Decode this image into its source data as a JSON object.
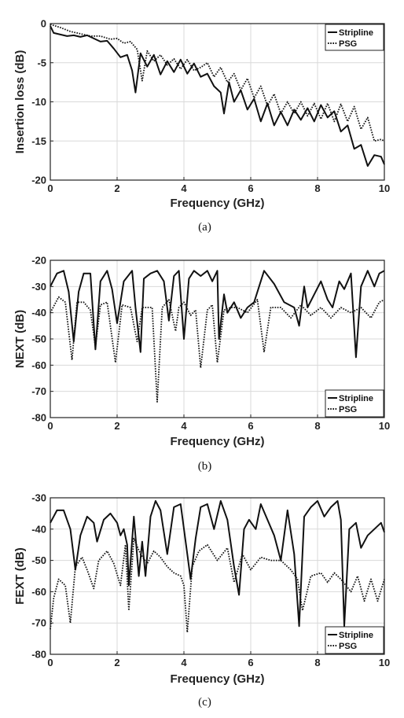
{
  "chart_data": [
    {
      "type": "line",
      "caption": "(a)",
      "xlabel": "Frequency (GHz)",
      "ylabel": "Insertion loss (dB)",
      "xlim": [
        0,
        10
      ],
      "ylim": [
        -20,
        0
      ],
      "xticks": [
        0,
        2,
        4,
        6,
        8,
        10
      ],
      "yticks": [
        0,
        -5,
        -10,
        -15,
        -20
      ],
      "grid": true,
      "legend_position": "top-right",
      "series": [
        {
          "name": "Stripline",
          "style": "solid",
          "x": [
            0,
            0.1,
            0.3,
            0.5,
            0.7,
            0.9,
            1.1,
            1.3,
            1.5,
            1.7,
            1.9,
            2.1,
            2.3,
            2.45,
            2.55,
            2.7,
            2.9,
            3.1,
            3.3,
            3.5,
            3.7,
            3.9,
            4.1,
            4.3,
            4.5,
            4.7,
            4.9,
            5.1,
            5.2,
            5.35,
            5.5,
            5.7,
            5.9,
            6.1,
            6.3,
            6.5,
            6.7,
            6.9,
            7.1,
            7.3,
            7.5,
            7.7,
            7.9,
            8.1,
            8.3,
            8.5,
            8.7,
            8.9,
            9.1,
            9.3,
            9.5,
            9.7,
            9.9,
            10
          ],
          "y": [
            -0.3,
            -1.2,
            -1.4,
            -1.6,
            -1.5,
            -1.7,
            -1.5,
            -1.9,
            -2.3,
            -2.2,
            -3.2,
            -4.3,
            -4.0,
            -6.0,
            -8.8,
            -3.8,
            -5.5,
            -4.0,
            -6.5,
            -4.8,
            -6.2,
            -4.6,
            -6.4,
            -5.1,
            -6.8,
            -6.4,
            -8.0,
            -8.8,
            -11.5,
            -7.5,
            -10.0,
            -8.5,
            -11.0,
            -9.6,
            -12.5,
            -10.2,
            -13.0,
            -11.3,
            -13.0,
            -11.0,
            -12.3,
            -10.8,
            -12.5,
            -10.4,
            -12.0,
            -11.2,
            -13.8,
            -13.0,
            -16.0,
            -15.5,
            -18.2,
            -16.8,
            -17.0,
            -18.0
          ]
        },
        {
          "name": "PSG",
          "style": "dotted",
          "x": [
            0,
            0.3,
            0.6,
            0.9,
            1.2,
            1.5,
            1.8,
            2.0,
            2.2,
            2.4,
            2.6,
            2.75,
            2.9,
            3.1,
            3.3,
            3.5,
            3.7,
            3.9,
            4.1,
            4.3,
            4.5,
            4.7,
            4.9,
            5.1,
            5.3,
            5.5,
            5.7,
            5.9,
            6.1,
            6.3,
            6.5,
            6.7,
            6.9,
            7.1,
            7.3,
            7.5,
            7.7,
            7.9,
            8.1,
            8.3,
            8.5,
            8.7,
            8.9,
            9.1,
            9.3,
            9.5,
            9.7,
            9.9,
            10
          ],
          "y": [
            -0.1,
            -0.5,
            -1.0,
            -1.3,
            -1.6,
            -1.6,
            -2.0,
            -1.9,
            -2.5,
            -2.3,
            -3.3,
            -7.3,
            -3.5,
            -4.8,
            -4.0,
            -5.3,
            -4.5,
            -5.8,
            -4.6,
            -6.0,
            -5.6,
            -5.0,
            -6.8,
            -5.6,
            -7.5,
            -6.4,
            -8.5,
            -7.0,
            -9.5,
            -8.0,
            -10.5,
            -9.0,
            -11.5,
            -10.0,
            -11.5,
            -10.0,
            -11.8,
            -10.2,
            -12.2,
            -10.2,
            -12.5,
            -10.3,
            -12.5,
            -10.6,
            -13.5,
            -12.0,
            -15.0,
            -14.8,
            -15.0
          ]
        }
      ]
    },
    {
      "type": "line",
      "caption": "(b)",
      "xlabel": "Frequency (GHz)",
      "ylabel": "NEXT (dB)",
      "xlim": [
        0,
        10
      ],
      "ylim": [
        -80,
        -20
      ],
      "xticks": [
        0,
        2,
        4,
        6,
        8,
        10
      ],
      "yticks": [
        -20,
        -30,
        -40,
        -50,
        -60,
        -70,
        -80
      ],
      "grid": true,
      "legend_position": "bottom-right",
      "series": [
        {
          "name": "Stripline",
          "style": "solid",
          "x": [
            0,
            0.2,
            0.4,
            0.55,
            0.7,
            0.85,
            1.0,
            1.2,
            1.35,
            1.5,
            1.7,
            1.85,
            2.0,
            2.2,
            2.45,
            2.55,
            2.7,
            2.8,
            3.0,
            3.2,
            3.4,
            3.55,
            3.7,
            3.85,
            4.0,
            4.15,
            4.3,
            4.5,
            4.7,
            4.85,
            5.0,
            5.05,
            5.2,
            5.3,
            5.5,
            5.7,
            5.9,
            6.1,
            6.4,
            6.7,
            7.0,
            7.3,
            7.45,
            7.6,
            7.7,
            7.9,
            8.1,
            8.3,
            8.45,
            8.65,
            8.8,
            9.0,
            9.15,
            9.3,
            9.5,
            9.7,
            9.85,
            10
          ],
          "y": [
            -30,
            -25,
            -24,
            -32,
            -51,
            -32,
            -25,
            -25,
            -54,
            -28,
            -24,
            -31,
            -44,
            -28,
            -24,
            -38,
            -55,
            -27,
            -25,
            -24,
            -28,
            -43,
            -26,
            -24,
            -50,
            -27,
            -24,
            -26,
            -24,
            -28,
            -24,
            -50,
            -33,
            -40,
            -36,
            -42,
            -38,
            -36,
            -24,
            -29,
            -36,
            -38,
            -45,
            -30,
            -38,
            -33,
            -28,
            -35,
            -38,
            -28,
            -31,
            -25,
            -57,
            -30,
            -24,
            -30,
            -25,
            -24
          ]
        },
        {
          "name": "PSG",
          "style": "dotted",
          "x": [
            0,
            0.25,
            0.45,
            0.65,
            0.8,
            1.0,
            1.2,
            1.35,
            1.5,
            1.7,
            1.95,
            2.15,
            2.4,
            2.6,
            2.75,
            2.9,
            3.05,
            3.2,
            3.35,
            3.55,
            3.75,
            3.85,
            4.0,
            4.2,
            4.35,
            4.5,
            4.7,
            4.85,
            5.0,
            5.2,
            5.4,
            5.6,
            5.9,
            6.2,
            6.4,
            6.6,
            6.9,
            7.2,
            7.5,
            7.8,
            8.1,
            8.4,
            8.7,
            9.0,
            9.3,
            9.6,
            9.85,
            10
          ],
          "y": [
            -40,
            -34,
            -36,
            -58,
            -36,
            -36,
            -39,
            -53,
            -37,
            -36,
            -59,
            -37,
            -38,
            -51,
            -38,
            -38,
            -38,
            -74,
            -38,
            -35,
            -47,
            -38,
            -36,
            -41,
            -39,
            -61,
            -39,
            -37,
            -59,
            -39,
            -38,
            -38,
            -40,
            -35,
            -55,
            -38,
            -38,
            -42,
            -37,
            -41,
            -38,
            -42,
            -38,
            -40,
            -38,
            -42,
            -36,
            -35
          ]
        }
      ]
    },
    {
      "type": "line",
      "caption": "(c)",
      "xlabel": "Frequency (GHz)",
      "ylabel": "FEXT (dB)",
      "xlim": [
        0,
        10
      ],
      "ylim": [
        -80,
        -30
      ],
      "xticks": [
        0,
        2,
        4,
        6,
        8,
        10
      ],
      "yticks": [
        -30,
        -40,
        -50,
        -60,
        -70,
        -80
      ],
      "grid": true,
      "legend_position": "bottom-right",
      "series": [
        {
          "name": "Stripline",
          "style": "solid",
          "x": [
            0,
            0.2,
            0.4,
            0.6,
            0.75,
            0.9,
            1.1,
            1.3,
            1.4,
            1.6,
            1.8,
            2.0,
            2.1,
            2.2,
            2.3,
            2.35,
            2.5,
            2.65,
            2.75,
            2.85,
            3.0,
            3.15,
            3.3,
            3.5,
            3.7,
            3.9,
            4.1,
            4.2,
            4.35,
            4.5,
            4.7,
            4.9,
            5.1,
            5.3,
            5.5,
            5.65,
            5.8,
            5.95,
            6.15,
            6.3,
            6.5,
            6.7,
            6.9,
            7.1,
            7.3,
            7.45,
            7.6,
            7.8,
            8.0,
            8.2,
            8.4,
            8.6,
            8.7,
            8.8,
            8.95,
            9.15,
            9.3,
            9.5,
            9.7,
            9.9,
            10
          ],
          "y": [
            -38,
            -34,
            -34,
            -40,
            -53,
            -42,
            -36,
            -38,
            -44,
            -37,
            -35,
            -38,
            -42,
            -40,
            -45,
            -58,
            -36,
            -55,
            -44,
            -55,
            -36,
            -31,
            -34,
            -48,
            -33,
            -32,
            -48,
            -56,
            -43,
            -33,
            -32,
            -40,
            -31,
            -37,
            -52,
            -61,
            -40,
            -37,
            -40,
            -32,
            -37,
            -42,
            -50,
            -34,
            -48,
            -71,
            -36,
            -33,
            -31,
            -36,
            -33,
            -31,
            -37,
            -71,
            -40,
            -38,
            -46,
            -42,
            -40,
            -38,
            -41
          ]
        },
        {
          "name": "PSG",
          "style": "dotted",
          "x": [
            0,
            0.1,
            0.25,
            0.45,
            0.6,
            0.75,
            0.95,
            1.1,
            1.3,
            1.45,
            1.7,
            1.9,
            2.1,
            2.25,
            2.35,
            2.5,
            2.7,
            2.9,
            3.1,
            3.3,
            3.5,
            3.7,
            3.9,
            4.0,
            4.1,
            4.25,
            4.45,
            4.7,
            5.0,
            5.3,
            5.5,
            5.75,
            6.0,
            6.3,
            6.6,
            6.9,
            7.2,
            7.4,
            7.55,
            7.8,
            8.1,
            8.3,
            8.5,
            8.7,
            9.0,
            9.2,
            9.4,
            9.6,
            9.8,
            10
          ],
          "y": [
            -72,
            -62,
            -56,
            -58,
            -70,
            -52,
            -49,
            -53,
            -59,
            -50,
            -47,
            -51,
            -58,
            -45,
            -66,
            -43,
            -48,
            -51,
            -47,
            -49,
            -52,
            -54,
            -55,
            -58,
            -73,
            -52,
            -47,
            -45,
            -50,
            -46,
            -57,
            -48,
            -53,
            -49,
            -50,
            -50,
            -53,
            -56,
            -66,
            -55,
            -54,
            -57,
            -54,
            -56,
            -60,
            -55,
            -63,
            -56,
            -63,
            -56
          ]
        }
      ]
    }
  ]
}
